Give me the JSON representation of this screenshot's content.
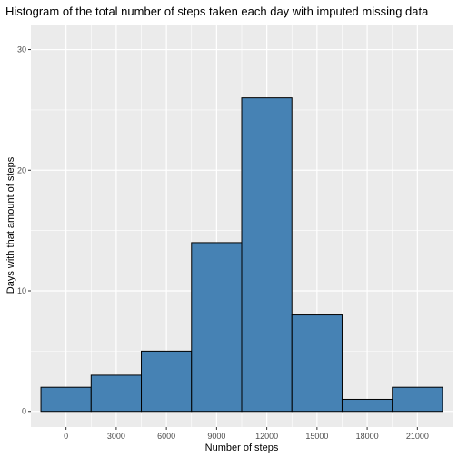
{
  "chart_data": {
    "type": "bar",
    "title": "Histogram of the total number of steps taken each day with imputed missing data",
    "xlabel": "Number of steps",
    "ylabel": "Days with that amount of steps",
    "bin_width": 3000,
    "bins": [
      {
        "center": 0,
        "count": 2
      },
      {
        "center": 3000,
        "count": 3
      },
      {
        "center": 6000,
        "count": 5
      },
      {
        "center": 9000,
        "count": 14
      },
      {
        "center": 12000,
        "count": 26
      },
      {
        "center": 15000,
        "count": 8
      },
      {
        "center": 18000,
        "count": 1
      },
      {
        "center": 21000,
        "count": 2
      }
    ],
    "xticks": [
      0,
      3000,
      6000,
      9000,
      12000,
      15000,
      18000,
      21000
    ],
    "yticks": [
      0,
      10,
      20,
      30
    ],
    "xlim": [
      -2100,
      23100
    ],
    "ylim": [
      -1.3,
      32
    ],
    "bar_fill": "#4682B4",
    "bar_stroke": "#000000",
    "panel_background": "#EBEBEB",
    "grid_color": "#FFFFFF",
    "grid": true,
    "legend": "none"
  }
}
